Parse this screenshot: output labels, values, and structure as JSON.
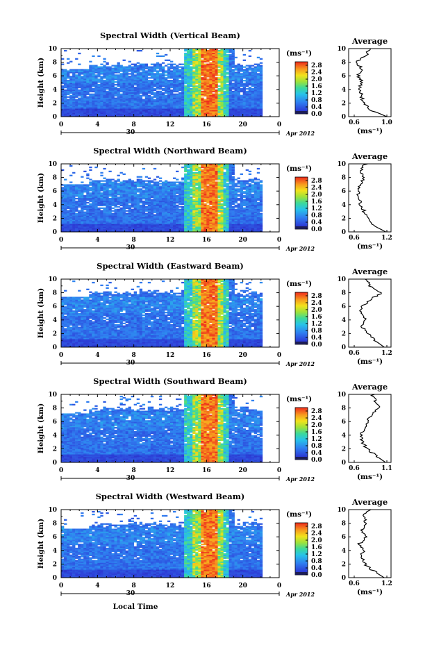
{
  "figure": {
    "date_label": "Apr 2012",
    "day_label": "30",
    "xlabel": "Local Time",
    "ylabel": "Height (km)",
    "unit_label": "(ms⁻¹)",
    "avg_title": "Average",
    "avg_xlabel": "(ms⁻¹)",
    "x_ticks": [
      "0",
      "4",
      "8",
      "12",
      "16",
      "20",
      "0"
    ],
    "y_ticks": [
      "0",
      "2",
      "4",
      "6",
      "8",
      "10"
    ],
    "colorbar_ticks": [
      "0.0",
      "0.4",
      "0.8",
      "1.2",
      "1.6",
      "2.0",
      "2.4",
      "2.8"
    ]
  },
  "panels": [
    {
      "title": "Spectral Width (Vertical Beam)",
      "avg_ticks": [
        "0.6",
        "1.0"
      ]
    },
    {
      "title": "Spectral Width (Northward Beam)",
      "avg_ticks": [
        "0.6",
        "1.2"
      ]
    },
    {
      "title": "Spectral Width (Eastward Beam)",
      "avg_ticks": [
        "0.6",
        "1.2"
      ]
    },
    {
      "title": "Spectral Width (Southward Beam)",
      "avg_ticks": [
        "0.6",
        "1.1"
      ]
    },
    {
      "title": "Spectral Width (Westward Beam)",
      "avg_ticks": [
        "0.6",
        "1.2"
      ]
    }
  ],
  "chart_data": [
    {
      "type": "heatmap",
      "title": "Spectral Width (Vertical Beam)",
      "xlabel": "Local Time",
      "ylabel": "Height (km)",
      "xlim": [
        0,
        24
      ],
      "ylim": [
        0,
        10
      ],
      "zlim": [
        0,
        3.0
      ],
      "z_unit": "ms-1",
      "average_profile": {
        "xlim": [
          0.6,
          1.0
        ],
        "height": [
          0,
          1,
          2,
          3,
          4,
          5,
          6,
          7,
          8,
          9,
          10
        ],
        "value": [
          1.0,
          0.8,
          0.72,
          0.69,
          0.66,
          0.7,
          0.65,
          0.69,
          0.63,
          0.74,
          0.8
        ]
      }
    },
    {
      "type": "heatmap",
      "title": "Spectral Width (Northward Beam)",
      "xlabel": "Local Time",
      "ylabel": "Height (km)",
      "xlim": [
        0,
        24
      ],
      "ylim": [
        0,
        10
      ],
      "zlim": [
        0,
        3.0
      ],
      "z_unit": "ms-1",
      "average_profile": {
        "xlim": [
          0.6,
          1.2
        ],
        "height": [
          0,
          1,
          2,
          3,
          4,
          5,
          6,
          7,
          8,
          9,
          10
        ],
        "value": [
          1.18,
          0.94,
          0.84,
          0.78,
          0.72,
          0.7,
          0.66,
          0.72,
          0.76,
          0.7,
          0.82
        ]
      }
    },
    {
      "type": "heatmap",
      "title": "Spectral Width (Eastward Beam)",
      "xlabel": "Local Time",
      "ylabel": "Height (km)",
      "xlim": [
        0,
        24
      ],
      "ylim": [
        0,
        10
      ],
      "zlim": [
        0,
        3.0
      ],
      "z_unit": "ms-1",
      "average_profile": {
        "xlim": [
          0.6,
          1.2
        ],
        "height": [
          0,
          1,
          2,
          3,
          4,
          5,
          6,
          7,
          8,
          9,
          10
        ],
        "value": [
          1.15,
          0.98,
          0.84,
          0.74,
          0.8,
          0.7,
          0.76,
          0.9,
          1.1,
          0.88,
          0.82
        ]
      }
    },
    {
      "type": "heatmap",
      "title": "Spectral Width (Southward Beam)",
      "xlabel": "Local Time",
      "ylabel": "Height (km)",
      "xlim": [
        0,
        24
      ],
      "ylim": [
        0,
        10
      ],
      "zlim": [
        0,
        3.0
      ],
      "z_unit": "ms-1",
      "average_profile": {
        "xlim": [
          0.6,
          1.1
        ],
        "height": [
          0,
          1,
          2,
          3,
          4,
          5,
          6,
          7,
          8,
          9,
          10
        ],
        "value": [
          1.08,
          0.93,
          0.8,
          0.72,
          0.7,
          0.76,
          0.8,
          0.86,
          0.98,
          0.92,
          0.88
        ]
      }
    },
    {
      "type": "heatmap",
      "title": "Spectral Width (Westward Beam)",
      "xlabel": "Local Time",
      "ylabel": "Height (km)",
      "xlim": [
        0,
        24
      ],
      "ylim": [
        0,
        10
      ],
      "zlim": [
        0,
        3.0
      ],
      "z_unit": "ms-1",
      "average_profile": {
        "xlim": [
          0.6,
          1.2
        ],
        "height": [
          0,
          1,
          2,
          3,
          4,
          5,
          6,
          7,
          8,
          9,
          10
        ],
        "value": [
          1.15,
          0.95,
          0.8,
          0.74,
          0.76,
          0.7,
          0.84,
          0.74,
          0.82,
          0.76,
          0.88
        ]
      }
    }
  ]
}
